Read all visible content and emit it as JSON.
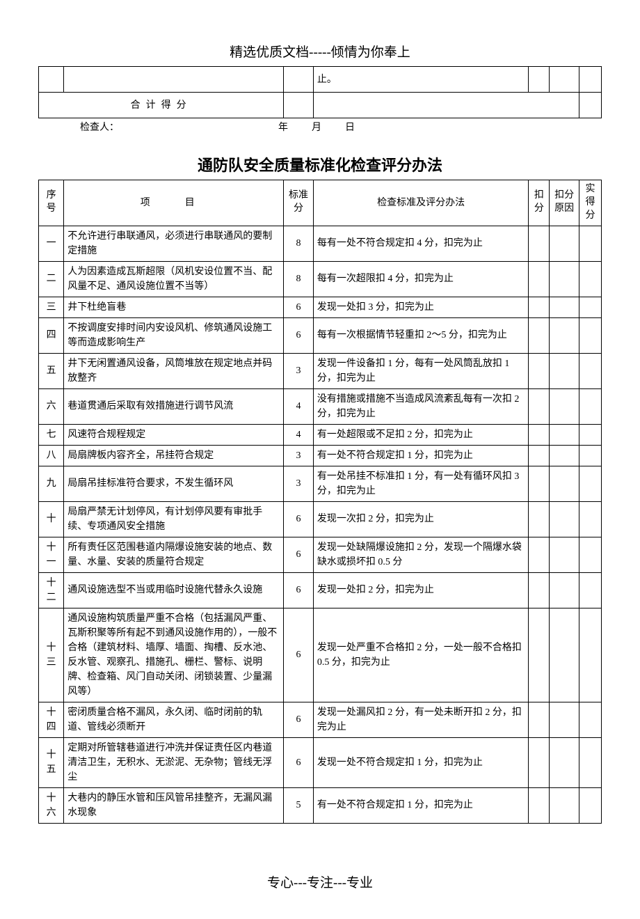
{
  "top_header": "精选优质文档-----倾情为你奉上",
  "top_table": {
    "cell_text": "止。",
    "total_label": "合计得分"
  },
  "inspector_label": "检查人：",
  "date_label": "年　月　日",
  "main_title": "通防队安全质量标准化检查评分办法",
  "headers": {
    "seq": "序号",
    "item": "项　目",
    "std": "标准分",
    "criteria": "检查标准及评分办法",
    "deduct": "扣分",
    "reason": "扣分原因",
    "actual": "实得分"
  },
  "rows": [
    {
      "seq": "一",
      "item": "不允许进行串联通风，必须进行串联通风的要制定措施",
      "std": "8",
      "criteria": "每有一处不符合规定扣 4 分，扣完为止"
    },
    {
      "seq": "二",
      "item": "人为因素造成瓦斯超限（风机安设位置不当、配风量不足、通风设施位置不当等）",
      "std": "8",
      "criteria": "每有一次超限扣 4 分，扣完为止"
    },
    {
      "seq": "三",
      "item": "井下杜绝盲巷",
      "std": "6",
      "criteria": "发现一处扣 3 分，扣完为止"
    },
    {
      "seq": "四",
      "item": "不按调度安排时间内安设风机、修筑通风设施工等而造成影响生产",
      "std": "6",
      "criteria": "每有一次根据情节轻重扣 2～5 分，扣完为止"
    },
    {
      "seq": "五",
      "item": "井下无闲置通风设备，风筒堆放在规定地点并码放整齐",
      "std": "3",
      "criteria": "发现一件设备扣 1 分，每有一处风筒乱放扣 1 分，扣完为止"
    },
    {
      "seq": "六",
      "item": "巷道贯通后采取有效措施进行调节风流",
      "std": "4",
      "criteria": "没有措施或措施不当造成风流紊乱每有一次扣 2 分，扣完为止"
    },
    {
      "seq": "七",
      "item": "风速符合规程规定",
      "std": "4",
      "criteria": "有一处超限或不足扣 2 分，扣完为止"
    },
    {
      "seq": "八",
      "item": "局扇牌板内容齐全，吊挂符合规定",
      "std": "3",
      "criteria": "有一处不符合规定扣 1 分，扣完为止"
    },
    {
      "seq": "九",
      "item": "局扇吊挂标准符合要求，不发生循环风",
      "std": "3",
      "criteria": "有一处吊挂不标准扣 1 分，有一处有循环风扣 3 分，扣完为止"
    },
    {
      "seq": "十",
      "item": "局扇严禁无计划停风，有计划停风要有审批手续、专项通风安全措施",
      "std": "6",
      "criteria": "发现一次扣 2 分，扣完为止"
    },
    {
      "seq": "十一",
      "item": "所有责任区范围巷道内隔爆设施安装的地点、数量、水量、安装的质量符合规定",
      "std": "6",
      "criteria": "发现一处缺隔爆设施扣 2 分，发现一个隔爆水袋缺水或损坏扣 0.5 分"
    },
    {
      "seq": "十二",
      "item": "通风设施选型不当或用临时设施代替永久设施",
      "std": "6",
      "criteria": "发现一处扣 2 分，扣完为止"
    },
    {
      "seq": "十三",
      "item": "通风设施构筑质量严重不合格（包括漏风严重、瓦斯积聚等所有起不到通风设施作用的），一般不合格（建筑材料、墙厚、墙面、掏槽、反水池、反水管、观察孔、措施孔、栅栏、警标、说明牌、检查箱、风门自动关闭、闭锁装置、少量漏风等）",
      "std": "6",
      "criteria": "发现一处严重不合格扣 2 分，一处一般不合格扣 0.5 分，扣完为止"
    },
    {
      "seq": "十四",
      "item": "密闭质量合格不漏风，永久闭、临时闭前的轨道、管线必须断开",
      "std": "6",
      "criteria": "发现一处漏风扣 2 分，有一处未断开扣 2 分，扣完为止"
    },
    {
      "seq": "十五",
      "item": "定期对所管辖巷道进行冲洗并保证责任区内巷道清洁卫生，无积水、无淤泥、无杂物；管线无浮尘",
      "std": "6",
      "criteria": "发现一处不符合规定扣 1 分，扣完为止"
    },
    {
      "seq": "十六",
      "item": "大巷内的静压水管和压风管吊挂整齐，无漏风漏水现象",
      "std": "5",
      "criteria": "有一处不符合规定扣 1 分，扣完为止"
    }
  ],
  "footer": "专心---专注---专业"
}
